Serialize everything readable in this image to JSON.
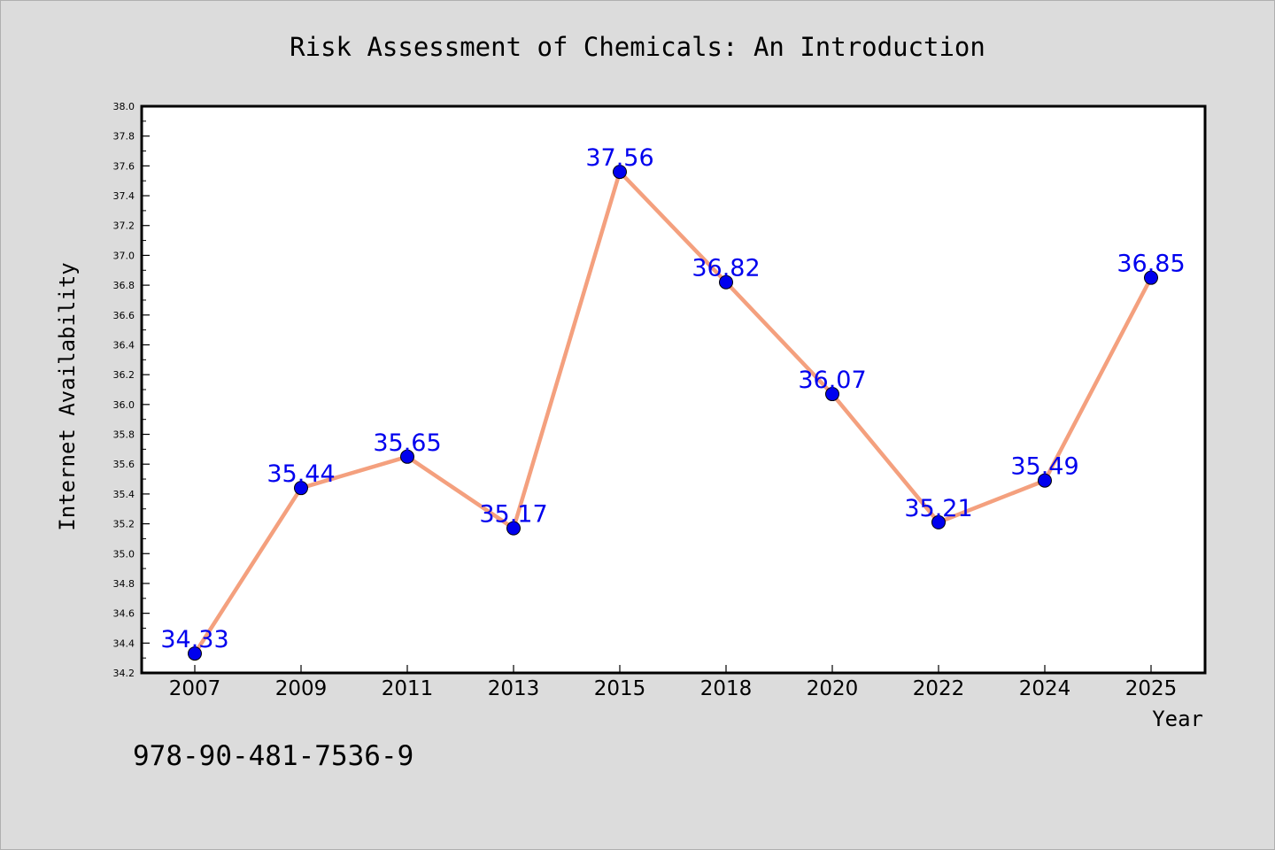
{
  "chart_data": {
    "type": "line",
    "title": "Risk Assessment of Chemicals: An Introduction",
    "xlabel": "Year",
    "ylabel": "Internet Availability",
    "categories": [
      "2007",
      "2009",
      "2011",
      "2013",
      "2015",
      "2018",
      "2020",
      "2022",
      "2024",
      "2025"
    ],
    "series": [
      {
        "values": [
          34.33,
          35.44,
          35.65,
          35.17,
          37.56,
          36.82,
          36.07,
          35.21,
          35.49,
          36.85
        ],
        "line_color": "#f4a07e",
        "marker_color": "#0000ee",
        "label_color": "#0000ee"
      }
    ],
    "data_labels": [
      "34.33",
      "35.44",
      "35.65",
      "35.17",
      "37.56",
      "36.82",
      "36.07",
      "35.21",
      "35.49",
      "36.85"
    ],
    "ylim": [
      34.2,
      38.0
    ],
    "y_major_ticks": [
      "34.2",
      "34.4",
      "34.6",
      "34.8",
      "35.0",
      "35.2",
      "35.4",
      "35.6",
      "35.8",
      "36.0",
      "36.2",
      "36.4",
      "36.6",
      "36.8",
      "37.0",
      "37.2",
      "37.4",
      "37.6",
      "37.8",
      "38.0"
    ],
    "grid": false,
    "legend": "none"
  },
  "footer": {
    "isbn": "978-90-481-7536-9"
  },
  "colors": {
    "background": "#dcdcdc",
    "plot_background": "#ffffff",
    "axis": "#000000"
  }
}
